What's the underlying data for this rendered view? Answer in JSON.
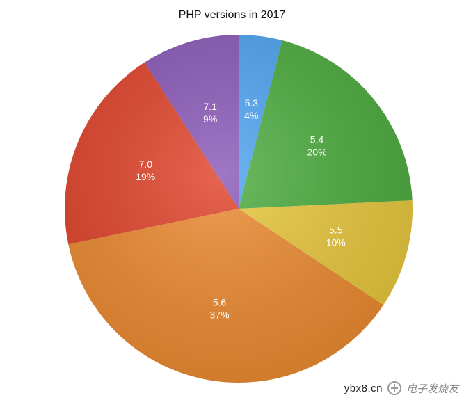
{
  "chart_data": {
    "type": "pie",
    "title": "PHP versions in 2017",
    "slices": [
      {
        "label": "5.3",
        "value": 4,
        "value_label": "4%",
        "color": "#4da3f0"
      },
      {
        "label": "5.4",
        "value": 20,
        "value_label": "20%",
        "color": "#4cab3e"
      },
      {
        "label": "5.5",
        "value": 10,
        "value_label": "10%",
        "color": "#e8c73c"
      },
      {
        "label": "5.6",
        "value": 37,
        "value_label": "37%",
        "color": "#ec8a30"
      },
      {
        "label": "7.0",
        "value": 19,
        "value_label": "19%",
        "color": "#e0432a"
      },
      {
        "label": "7.1",
        "value": 9,
        "value_label": "9%",
        "color": "#8a59b8"
      }
    ],
    "start_angle_deg": 0,
    "direction": "clockwise"
  },
  "watermark": {
    "domain": "ybx8.cn",
    "brand": "电子发烧友"
  }
}
